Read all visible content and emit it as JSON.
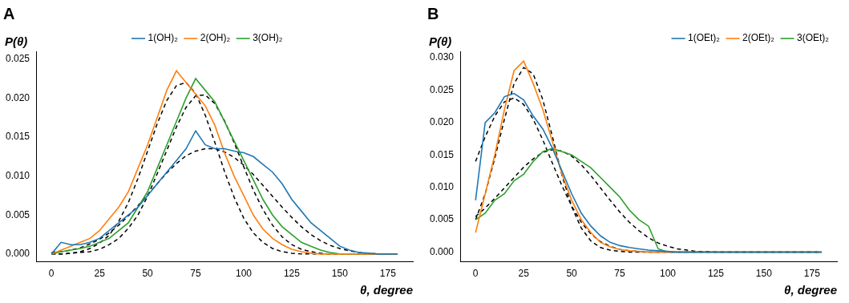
{
  "chart_data": [
    {
      "type": "line",
      "title": "A",
      "x_label": "θ, degree",
      "y_label": "P(θ)",
      "grid": false,
      "legend": "upper center",
      "xlim": [
        -8,
        188
      ],
      "xticks": [
        0,
        25,
        50,
        75,
        100,
        125,
        150,
        175
      ],
      "ylim": [
        -0.001,
        0.026
      ],
      "yticks": [
        {
          "value": 0,
          "label": "0.000"
        },
        {
          "value": 0.005,
          "label": "0.005"
        },
        {
          "value": 0.01,
          "label": "0.010"
        },
        {
          "value": 0.015,
          "label": "0.015"
        },
        {
          "value": 0.02,
          "label": "0.020"
        },
        {
          "value": 0.025,
          "label": "0.025"
        }
      ],
      "x": [
        0,
        5,
        10,
        15,
        20,
        25,
        30,
        35,
        40,
        45,
        50,
        55,
        60,
        65,
        70,
        75,
        80,
        85,
        90,
        95,
        100,
        105,
        110,
        115,
        120,
        125,
        130,
        135,
        140,
        145,
        150,
        155,
        160,
        165,
        170,
        175,
        180
      ],
      "series": [
        {
          "name": "1(OH)₂",
          "color": "#1f77b4",
          "line_style": "solid",
          "values": [
            0,
            0.0015,
            0.0012,
            0.0012,
            0.0015,
            0.002,
            0.003,
            0.004,
            0.005,
            0.006,
            0.0075,
            0.009,
            0.0105,
            0.012,
            0.0135,
            0.0158,
            0.014,
            0.0135,
            0.0135,
            0.0132,
            0.013,
            0.0125,
            0.0115,
            0.0105,
            0.009,
            0.007,
            0.0055,
            0.004,
            0.003,
            0.002,
            0.001,
            0.0005,
            0.0002,
            0.0001,
            0,
            0,
            0
          ]
        },
        {
          "name": "2(OH)₂",
          "color": "#ff7f0e",
          "line_style": "solid",
          "values": [
            0,
            0.0005,
            0.001,
            0.0015,
            0.002,
            0.003,
            0.0045,
            0.006,
            0.008,
            0.011,
            0.014,
            0.0175,
            0.021,
            0.0235,
            0.022,
            0.0205,
            0.019,
            0.0165,
            0.013,
            0.01,
            0.0075,
            0.005,
            0.0032,
            0.002,
            0.0012,
            0.0006,
            0.0003,
            0.0001,
            0,
            0,
            0,
            0,
            0,
            0,
            0,
            0,
            0
          ]
        },
        {
          "name": "3(OH)₂",
          "color": "#2ca02c",
          "line_style": "solid",
          "values": [
            0,
            0.0003,
            0.0005,
            0.0007,
            0.001,
            0.0015,
            0.002,
            0.003,
            0.004,
            0.006,
            0.008,
            0.011,
            0.014,
            0.017,
            0.02,
            0.0225,
            0.021,
            0.0195,
            0.017,
            0.0145,
            0.012,
            0.0095,
            0.007,
            0.005,
            0.0035,
            0.0025,
            0.0015,
            0.001,
            0.0005,
            0.0002,
            0,
            0,
            0,
            0,
            0,
            0,
            0
          ]
        },
        {
          "color": "#000000",
          "line_style": "dashed",
          "values": [
            0.0002,
            0.0003,
            0.0005,
            0.0008,
            0.0013,
            0.0019,
            0.0027,
            0.0037,
            0.0049,
            0.0062,
            0.0076,
            0.009,
            0.0104,
            0.0116,
            0.0126,
            0.0132,
            0.0135,
            0.0135,
            0.0131,
            0.0124,
            0.0114,
            0.0102,
            0.0088,
            0.0074,
            0.006,
            0.0047,
            0.0035,
            0.0025,
            0.0017,
            0.0011,
            0.0007,
            0.0004,
            0.0002,
            0.0001,
            0,
            0,
            0
          ]
        },
        {
          "color": "#000000",
          "line_style": "dashed",
          "values": [
            0,
            0,
            0.0001,
            0.0003,
            0.0007,
            0.0014,
            0.0024,
            0.0042,
            0.0066,
            0.0097,
            0.0132,
            0.0167,
            0.0197,
            0.0216,
            0.022,
            0.0206,
            0.0178,
            0.0143,
            0.0106,
            0.0073,
            0.0046,
            0.0027,
            0.0015,
            0.0007,
            0.0003,
            0.0001,
            0,
            0,
            0,
            0,
            0,
            0,
            0,
            0,
            0,
            0,
            0
          ]
        },
        {
          "color": "#000000",
          "line_style": "dashed",
          "values": [
            0,
            0,
            0.0001,
            0.0002,
            0.0003,
            0.0006,
            0.0012,
            0.002,
            0.0033,
            0.005,
            0.0074,
            0.0103,
            0.0133,
            0.0163,
            0.0188,
            0.0203,
            0.0204,
            0.0193,
            0.0171,
            0.0143,
            0.0112,
            0.0082,
            0.0057,
            0.0037,
            0.0022,
            0.0012,
            0.0006,
            0.0003,
            0.0001,
            0,
            0,
            0,
            0,
            0,
            0,
            0,
            0
          ]
        }
      ]
    },
    {
      "type": "line",
      "title": "B",
      "x_label": "θ, degree",
      "y_label": "P(θ)",
      "grid": false,
      "legend": "upper right",
      "xlim": [
        -8,
        188
      ],
      "xticks": [
        0,
        25,
        50,
        75,
        100,
        125,
        150,
        175
      ],
      "ylim": [
        -0.0015,
        0.031
      ],
      "yticks": [
        {
          "value": 0,
          "label": "0.000"
        },
        {
          "value": 0.005,
          "label": "0.005"
        },
        {
          "value": 0.01,
          "label": "0.010"
        },
        {
          "value": 0.015,
          "label": "0.015"
        },
        {
          "value": 0.02,
          "label": "0.020"
        },
        {
          "value": 0.025,
          "label": "0.025"
        },
        {
          "value": 0.03,
          "label": "0.030"
        }
      ],
      "x": [
        0,
        5,
        10,
        15,
        20,
        25,
        30,
        35,
        40,
        45,
        50,
        55,
        60,
        65,
        70,
        75,
        80,
        85,
        90,
        95,
        100,
        105,
        110,
        115,
        120,
        125,
        130,
        135,
        140,
        145,
        150,
        155,
        160,
        165,
        170,
        175,
        180
      ],
      "series": [
        {
          "name": "1(OEt)₂",
          "color": "#1f77b4",
          "line_style": "solid",
          "values": [
            0.008,
            0.02,
            0.0215,
            0.024,
            0.0245,
            0.0235,
            0.021,
            0.019,
            0.016,
            0.0125,
            0.009,
            0.006,
            0.004,
            0.0025,
            0.0015,
            0.001,
            0.0007,
            0.0005,
            0.0003,
            0.0002,
            0.0001,
            0,
            0,
            0,
            0,
            0,
            0,
            0,
            0,
            0,
            0,
            0,
            0,
            0,
            0,
            0,
            0
          ]
        },
        {
          "name": "2(OEt)₂",
          "color": "#ff7f0e",
          "line_style": "solid",
          "values": [
            0.003,
            0.009,
            0.015,
            0.022,
            0.028,
            0.0295,
            0.026,
            0.022,
            0.017,
            0.012,
            0.008,
            0.005,
            0.003,
            0.0015,
            0.0008,
            0.0004,
            0.0002,
            0.0001,
            0,
            0,
            0,
            0,
            0,
            0,
            0,
            0,
            0,
            0,
            0,
            0,
            0,
            0,
            0,
            0,
            0,
            0,
            0
          ]
        },
        {
          "name": "3(OEt)₂",
          "color": "#2ca02c",
          "line_style": "solid",
          "values": [
            0.005,
            0.006,
            0.008,
            0.009,
            0.011,
            0.012,
            0.014,
            0.0155,
            0.016,
            0.0155,
            0.015,
            0.014,
            0.013,
            0.0115,
            0.01,
            0.0085,
            0.0065,
            0.005,
            0.004,
            0.0005,
            0,
            0,
            0,
            0,
            0,
            0,
            0,
            0,
            0,
            0,
            0,
            0,
            0,
            0,
            0,
            0,
            0
          ]
        },
        {
          "color": "#000000",
          "line_style": "dashed",
          "values": [
            0.014,
            0.0178,
            0.021,
            0.0232,
            0.0238,
            0.0228,
            0.0205,
            0.0173,
            0.0137,
            0.0102,
            0.0071,
            0.0046,
            0.0028,
            0.0016,
            0.0009,
            0.0004,
            0.0002,
            0.0001,
            0,
            0,
            0,
            0,
            0,
            0,
            0,
            0,
            0,
            0,
            0,
            0,
            0,
            0,
            0,
            0,
            0,
            0,
            0
          ]
        },
        {
          "color": "#000000",
          "line_style": "dashed",
          "values": [
            0.005,
            0.009,
            0.0145,
            0.0205,
            0.026,
            0.0285,
            0.0275,
            0.0235,
            0.0178,
            0.0118,
            0.007,
            0.0037,
            0.0017,
            0.0007,
            0.0003,
            0.0001,
            0,
            0,
            0,
            0,
            0,
            0,
            0,
            0,
            0,
            0,
            0,
            0,
            0,
            0,
            0,
            0,
            0,
            0,
            0,
            0,
            0
          ]
        },
        {
          "color": "#000000",
          "line_style": "dashed",
          "values": [
            0.0055,
            0.0068,
            0.0083,
            0.0099,
            0.0115,
            0.0131,
            0.0144,
            0.0154,
            0.0158,
            0.0156,
            0.0148,
            0.0135,
            0.0118,
            0.0099,
            0.008,
            0.0062,
            0.0046,
            0.0033,
            0.0022,
            0.0014,
            0.0009,
            0.0005,
            0.0003,
            0.0001,
            0.0001,
            0,
            0,
            0,
            0,
            0,
            0,
            0,
            0,
            0,
            0,
            0,
            0
          ]
        }
      ]
    }
  ]
}
